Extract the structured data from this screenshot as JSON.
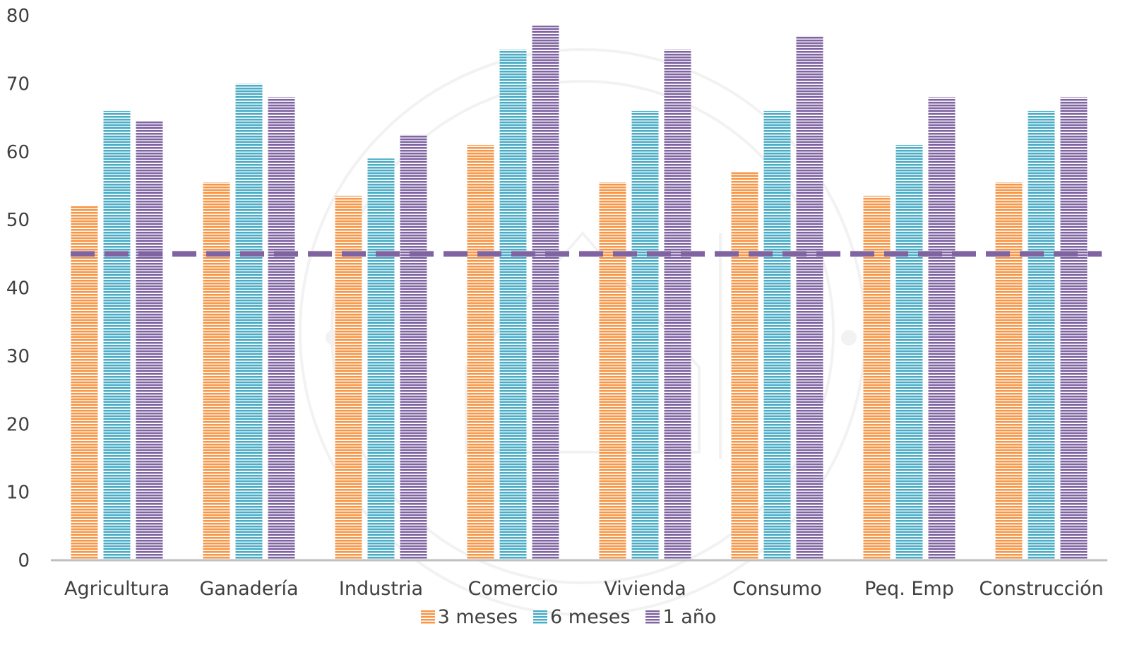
{
  "chart_data": {
    "type": "bar",
    "categories": [
      "Agricultura",
      "Ganadería",
      "Industria",
      "Comercio",
      "Vivienda",
      "Consumo",
      "Peq. Emp",
      "Construcción"
    ],
    "series": [
      {
        "name": "3 meses",
        "color": "#F79646",
        "values": [
          52,
          55.5,
          53.5,
          61,
          55.5,
          57,
          53.5,
          55.5
        ]
      },
      {
        "name": "6 meses",
        "color": "#4BACC6",
        "values": [
          66,
          70,
          59,
          75,
          66,
          66,
          61,
          66
        ]
      },
      {
        "name": "1 año",
        "color": "#8064A2",
        "values": [
          64.5,
          68,
          62.5,
          78.5,
          75,
          77,
          68,
          68
        ]
      }
    ],
    "reference_line": {
      "value": 45,
      "style": "dashed",
      "color": "#8064A2"
    },
    "yticks": [
      0,
      10,
      20,
      30,
      40,
      50,
      60,
      70,
      80
    ],
    "ylim": [
      0,
      80
    ],
    "xlabel": "",
    "ylabel": "",
    "title": "",
    "grid": false,
    "legend_position": "bottom",
    "bar_fill": "horizontal stripes"
  }
}
